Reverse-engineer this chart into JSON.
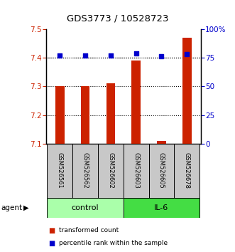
{
  "title": "GDS3773 / 10528723",
  "samples": [
    "GSM526561",
    "GSM526562",
    "GSM526602",
    "GSM526603",
    "GSM526605",
    "GSM526678"
  ],
  "red_values": [
    7.3,
    7.3,
    7.31,
    7.39,
    7.11,
    7.47
  ],
  "blue_values": [
    77,
    77,
    77,
    79,
    76,
    78
  ],
  "ylim_left": [
    7.1,
    7.5
  ],
  "ylim_right": [
    0,
    100
  ],
  "yticks_left": [
    7.1,
    7.2,
    7.3,
    7.4,
    7.5
  ],
  "yticks_right": [
    0,
    25,
    50,
    75,
    100
  ],
  "ytick_labels_right": [
    "0",
    "25",
    "50",
    "75",
    "100%"
  ],
  "groups": [
    {
      "label": "control",
      "indices": [
        0,
        1,
        2
      ],
      "color": "#AAFFAA"
    },
    {
      "label": "IL-6",
      "indices": [
        3,
        4,
        5
      ],
      "color": "#44DD44"
    }
  ],
  "bar_color": "#CC2200",
  "dot_color": "#0000CC",
  "label_color_left": "#CC2200",
  "label_color_right": "#0000CC",
  "agent_label": "agent",
  "legend_red": "transformed count",
  "legend_blue": "percentile rank within the sample",
  "bar_bottom": 7.1,
  "bar_width": 0.35
}
